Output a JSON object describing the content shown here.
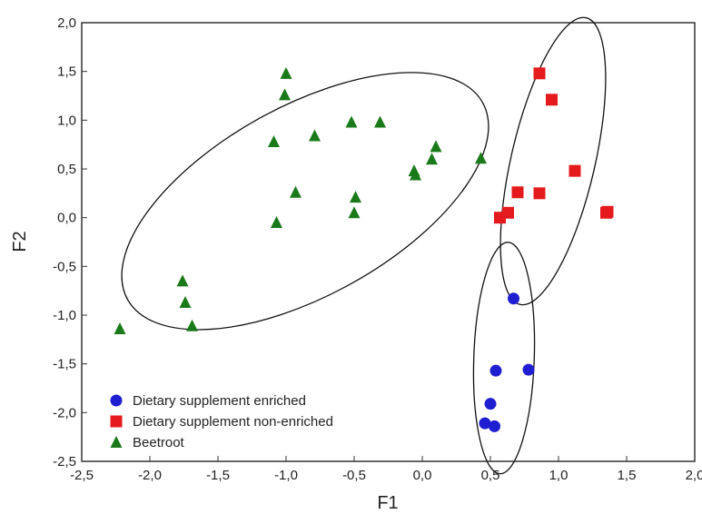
{
  "chart_data": {
    "type": "scatter",
    "title": "",
    "xlabel": "F1",
    "ylabel": "F2",
    "xlim": [
      -2.5,
      2.0
    ],
    "ylim": [
      -2.5,
      2.0
    ],
    "x_ticks": [
      -2.5,
      -2.0,
      -1.5,
      -1.0,
      -0.5,
      0.0,
      0.5,
      1.0,
      1.5,
      2.0
    ],
    "y_ticks": [
      -2.5,
      -2.0,
      -1.5,
      -1.0,
      -0.5,
      0.0,
      0.5,
      1.0,
      1.5,
      2.0
    ],
    "x_tick_labels": [
      "-2,5",
      "-2,0",
      "-1,5",
      "-1,0",
      "-0,5",
      "0,0",
      "0,5",
      "1,0",
      "1,5",
      "2,0"
    ],
    "y_tick_labels": [
      "-2,5",
      "-2,0",
      "-1,5",
      "-1,0",
      "-0,5",
      "0,0",
      "0,5",
      "1,0",
      "1,5",
      "2,0"
    ],
    "grid": false,
    "legend_position": "bottom-left",
    "series": [
      {
        "name": "Dietary supplement enriched",
        "marker": "circle",
        "color": "#1f1fd1",
        "points": [
          [
            0.67,
            -0.83
          ],
          [
            0.54,
            -1.57
          ],
          [
            0.78,
            -1.56
          ],
          [
            0.5,
            -1.91
          ],
          [
            0.46,
            -2.11
          ],
          [
            0.53,
            -2.14
          ]
        ]
      },
      {
        "name": "Dietary supplement non-enriched",
        "marker": "square",
        "color": "#e41a1c",
        "points": [
          [
            0.86,
            1.48
          ],
          [
            0.95,
            1.21
          ],
          [
            1.12,
            0.48
          ],
          [
            0.7,
            0.26
          ],
          [
            0.86,
            0.25
          ],
          [
            0.63,
            0.05
          ],
          [
            0.57,
            0.0
          ],
          [
            1.36,
            0.06
          ],
          [
            1.35,
            0.05
          ]
        ]
      },
      {
        "name": "Beetroot",
        "marker": "triangle",
        "color": "#1a7a1a",
        "points": [
          [
            -1.0,
            1.48
          ],
          [
            -1.01,
            1.26
          ],
          [
            -0.52,
            0.98
          ],
          [
            -0.31,
            0.98
          ],
          [
            -1.09,
            0.78
          ],
          [
            -0.79,
            0.84
          ],
          [
            0.1,
            0.73
          ],
          [
            0.07,
            0.6
          ],
          [
            -0.06,
            0.48
          ],
          [
            -0.05,
            0.44
          ],
          [
            0.43,
            0.61
          ],
          [
            -0.93,
            0.26
          ],
          [
            -0.49,
            0.21
          ],
          [
            -0.5,
            0.05
          ],
          [
            -1.07,
            -0.05
          ],
          [
            -1.76,
            -0.65
          ],
          [
            -1.74,
            -0.87
          ],
          [
            -1.69,
            -1.11
          ],
          [
            -2.22,
            -1.14
          ]
        ]
      }
    ],
    "ellipses": [
      {
        "series": "Beetroot",
        "cx": -0.86,
        "cy": 0.17,
        "rx": 1.49,
        "ry": 0.97,
        "angle_deg": 29
      },
      {
        "series": "Dietary supplement non-enriched",
        "cx": 0.96,
        "cy": 0.58,
        "rx": 1.08,
        "ry": 0.43,
        "angle_deg": 77
      },
      {
        "series": "Dietary supplement enriched",
        "cx": 0.6,
        "cy": -1.44,
        "rx": 0.85,
        "ry": 0.31,
        "angle_deg": 88
      }
    ]
  }
}
